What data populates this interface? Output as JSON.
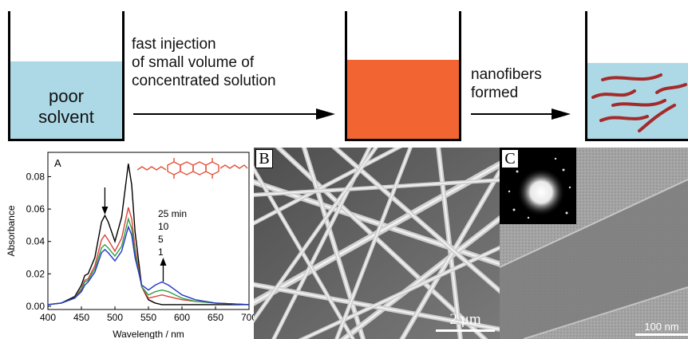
{
  "schematic": {
    "beaker1_label_line1": "poor",
    "beaker1_label_line2": "solvent",
    "step1_line1": "fast injection",
    "step1_line2": "of small volume of",
    "step1_line3": "concentrated solution",
    "step2_line1": "nanofibers",
    "step2_line2": "formed",
    "colors": {
      "poor_solvent": "#add8e6",
      "concentrated_solution": "#f26532",
      "nanofiber": "#a52a2a"
    }
  },
  "panel_a": {
    "letter": "A",
    "time_labels": [
      "25 min",
      "10",
      "5",
      "1"
    ],
    "chart_data": {
      "type": "line",
      "xlabel": "Wavelength / nm",
      "ylabel": "Absorbance",
      "xlim": [
        400,
        700
      ],
      "ylim": [
        -0.002,
        0.095
      ],
      "xticks": [
        400,
        450,
        500,
        550,
        600,
        650,
        700
      ],
      "yticks": [
        0.0,
        0.02,
        0.04,
        0.06,
        0.08
      ],
      "ytick_labels": [
        "0.00",
        "0.02",
        "0.04",
        "0.06",
        "0.08"
      ],
      "x": [
        400,
        420,
        440,
        450,
        455,
        460,
        470,
        480,
        485,
        490,
        500,
        510,
        520,
        525,
        530,
        540,
        550,
        560,
        570,
        580,
        590,
        600,
        620,
        650,
        700
      ],
      "series": [
        {
          "color": "#000000",
          "values": [
            0.001,
            0.002,
            0.006,
            0.013,
            0.019,
            0.02,
            0.03,
            0.052,
            0.056,
            0.052,
            0.04,
            0.055,
            0.088,
            0.075,
            0.046,
            0.012,
            0.004,
            0.002,
            0.001,
            0.001,
            0.001,
            0.001,
            0.001,
            0.001,
            0.001
          ]
        },
        {
          "color": "#e0413a",
          "values": [
            0.001,
            0.002,
            0.005,
            0.011,
            0.016,
            0.017,
            0.025,
            0.041,
            0.044,
            0.041,
            0.034,
            0.042,
            0.061,
            0.054,
            0.036,
            0.012,
            0.005,
            0.006,
            0.007,
            0.006,
            0.005,
            0.004,
            0.003,
            0.002,
            0.001
          ]
        },
        {
          "color": "#2ea043",
          "values": [
            0.001,
            0.002,
            0.005,
            0.01,
            0.015,
            0.016,
            0.023,
            0.036,
            0.038,
            0.036,
            0.031,
            0.037,
            0.054,
            0.048,
            0.033,
            0.012,
            0.007,
            0.009,
            0.01,
            0.009,
            0.007,
            0.005,
            0.003,
            0.002,
            0.001
          ]
        },
        {
          "color": "#2336c8",
          "values": [
            0.001,
            0.002,
            0.005,
            0.009,
            0.013,
            0.015,
            0.021,
            0.033,
            0.035,
            0.033,
            0.028,
            0.034,
            0.049,
            0.044,
            0.03,
            0.013,
            0.01,
            0.013,
            0.015,
            0.013,
            0.01,
            0.007,
            0.004,
            0.002,
            0.001
          ]
        }
      ],
      "annotations": [
        "down-arrow at ~485 nm",
        "up-arrow at ~570 nm"
      ]
    }
  },
  "panel_b": {
    "letter": "B",
    "scale_bar_label": "2 μm"
  },
  "panel_c": {
    "letter": "C",
    "scale_bar_label": "100 nm"
  }
}
